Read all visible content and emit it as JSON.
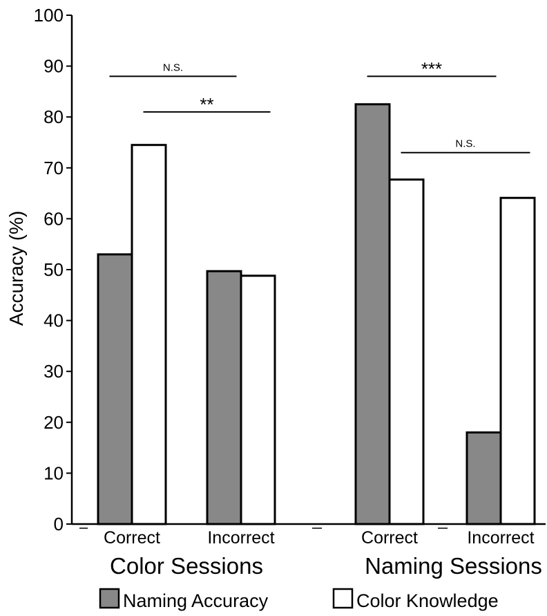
{
  "chart_data": {
    "type": "bar",
    "ylabel": "Accuracy (%)",
    "ylim": [
      0,
      100
    ],
    "yticks": [
      0,
      10,
      20,
      30,
      40,
      50,
      60,
      70,
      80,
      90,
      100
    ],
    "grid": false,
    "groups": [
      {
        "label": "Color Sessions",
        "categories": [
          "Correct",
          "Incorrect"
        ]
      },
      {
        "label": "Naming Sessions",
        "categories": [
          "Correct",
          "Incorrect"
        ]
      }
    ],
    "series": [
      {
        "name": "Naming Accuracy",
        "color": "#888888",
        "values": [
          53,
          49.7,
          82.5,
          18
        ]
      },
      {
        "name": "Color Knowledge",
        "color": "#ffffff",
        "values": [
          74.5,
          48.8,
          67.7,
          64.1
        ]
      }
    ],
    "annotations": [
      {
        "label": "N.S.",
        "from_bar": [
          0,
          0
        ],
        "to_bar": [
          1,
          0
        ],
        "y": 88
      },
      {
        "label": "**",
        "from_bar": [
          0,
          1
        ],
        "to_bar": [
          1,
          1
        ],
        "y": 81
      },
      {
        "label": "***",
        "from_bar": [
          2,
          0
        ],
        "to_bar": [
          3,
          0
        ],
        "y": 88
      },
      {
        "label": "N.S.",
        "from_bar": [
          2,
          1
        ],
        "to_bar": [
          3,
          1
        ],
        "y": 73
      }
    ],
    "legend_position": "bottom"
  }
}
